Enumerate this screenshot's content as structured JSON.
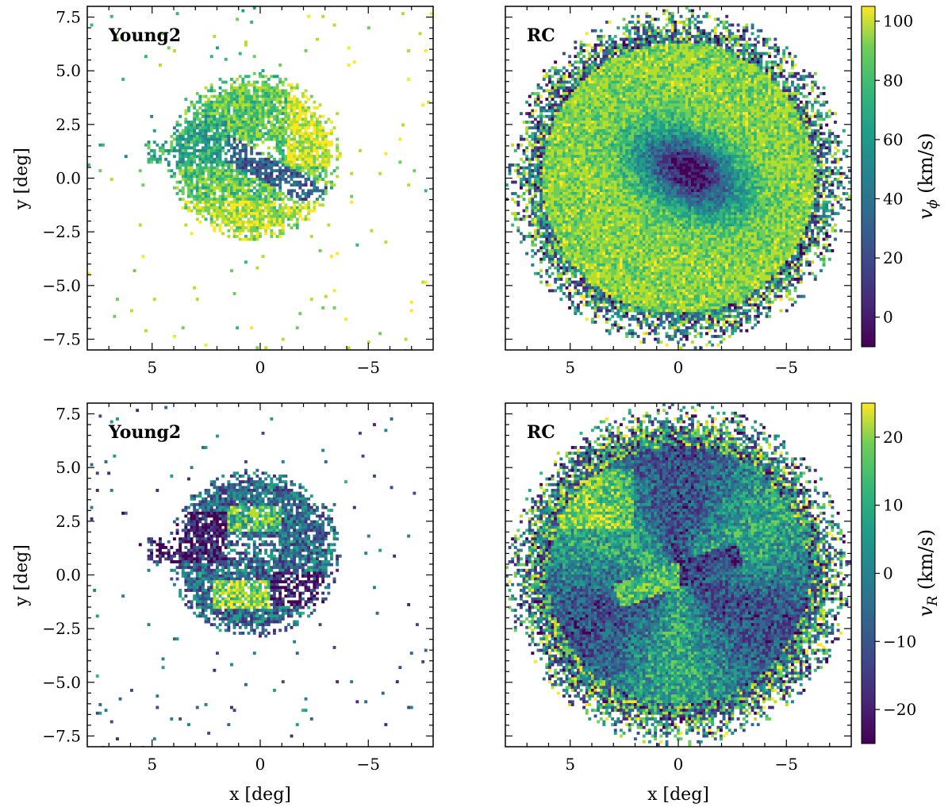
{
  "figure": {
    "xlabel": "x [deg]",
    "ylabel": "y [deg]",
    "xlim": [
      8,
      -8
    ],
    "ylim": [
      -8,
      8
    ],
    "xticks": [
      5,
      0,
      -5
    ],
    "xtick_labels": [
      "5",
      "0",
      "−5"
    ],
    "yticks": [
      7.5,
      5.0,
      2.5,
      0.0,
      -2.5,
      -5.0,
      -7.5
    ],
    "ytick_labels": [
      "7.5",
      "5.0",
      "2.5",
      "0.0",
      "−2.5",
      "−5.0",
      "−7.5"
    ]
  },
  "colorbars": [
    {
      "label_main": "v",
      "label_sub": "ϕ",
      "label_unit": " (km/s)",
      "range": [
        -10,
        105
      ],
      "ticks": [
        0,
        20,
        40,
        60,
        80,
        100
      ],
      "tick_labels": [
        "0",
        "20",
        "40",
        "60",
        "80",
        "100"
      ]
    },
    {
      "label_main": "v",
      "label_sub": "R",
      "label_unit": " (km/s)",
      "range": [
        -25,
        25
      ],
      "ticks": [
        -20,
        -10,
        0,
        10,
        20
      ],
      "tick_labels": [
        "−20",
        "−10",
        "0",
        "10",
        "20"
      ]
    }
  ],
  "chart_data": [
    {
      "type": "heatmap",
      "title": "Young2",
      "quantity": "v_phi",
      "unit": "km/s",
      "colorbar": 0,
      "xlim": [
        8,
        -8
      ],
      "ylim": [
        -8,
        8
      ],
      "population_extent": {
        "x": [
          -4.3,
          5.0
        ],
        "y": [
          -3.5,
          5.5
        ]
      },
      "features": [
        {
          "desc": "low v_phi elongated bar",
          "x": [
            -2.5,
            1.5
          ],
          "y": [
            -0.5,
            1.3
          ],
          "value": 25
        },
        {
          "desc": "high v_phi arc (north-west)",
          "x": [
            -3.5,
            -1.5
          ],
          "y": [
            0.5,
            4.5
          ],
          "value": 95
        },
        {
          "desc": "high v_phi south arc",
          "x": [
            -3.5,
            2.0
          ],
          "y": [
            -2.5,
            -1.0
          ],
          "value": 90
        }
      ]
    },
    {
      "type": "heatmap",
      "title": "RC",
      "quantity": "v_phi",
      "unit": "km/s",
      "colorbar": 0,
      "xlim": [
        8,
        -8
      ],
      "ylim": [
        -8,
        8
      ],
      "population_extent": {
        "radius_deg": 8.0
      },
      "features": [
        {
          "desc": "central minimum",
          "x": [
            -1.0,
            0.5
          ],
          "y": [
            -0.5,
            1.0
          ],
          "value": 0
        },
        {
          "desc": "outer disc",
          "radius_deg": [
            3.5,
            7.5
          ],
          "value": 85
        }
      ]
    },
    {
      "type": "heatmap",
      "title": "Young2",
      "quantity": "v_R",
      "unit": "km/s",
      "colorbar": 1,
      "xlim": [
        8,
        -8
      ],
      "ylim": [
        -8,
        8
      ],
      "population_extent": {
        "x": [
          -4.3,
          5.0
        ],
        "y": [
          -3.5,
          5.5
        ]
      },
      "features": [
        {
          "desc": "negative v_R patches",
          "x": [
            -2.5,
            2.0
          ],
          "y": [
            -1.0,
            2.5
          ],
          "value": -22
        },
        {
          "desc": "positive v_R lobe",
          "x": [
            0.0,
            2.0
          ],
          "y": [
            -1.5,
            -0.5
          ],
          "value": 20
        }
      ]
    },
    {
      "type": "heatmap",
      "title": "RC",
      "quantity": "v_R",
      "unit": "km/s",
      "colorbar": 1,
      "xlim": [
        8,
        -8
      ],
      "ylim": [
        -8,
        8
      ],
      "population_extent": {
        "radius_deg": 8.0
      },
      "features": [
        {
          "desc": "central dipole along bar",
          "x": [
            -2.0,
            2.0
          ],
          "y": [
            -1.0,
            1.0
          ],
          "value_range": [
            -20,
            15
          ]
        },
        {
          "desc": "positive north-east region",
          "x": [
            2.0,
            6.0
          ],
          "y": [
            2.0,
            5.0
          ],
          "value": 15
        }
      ]
    }
  ]
}
